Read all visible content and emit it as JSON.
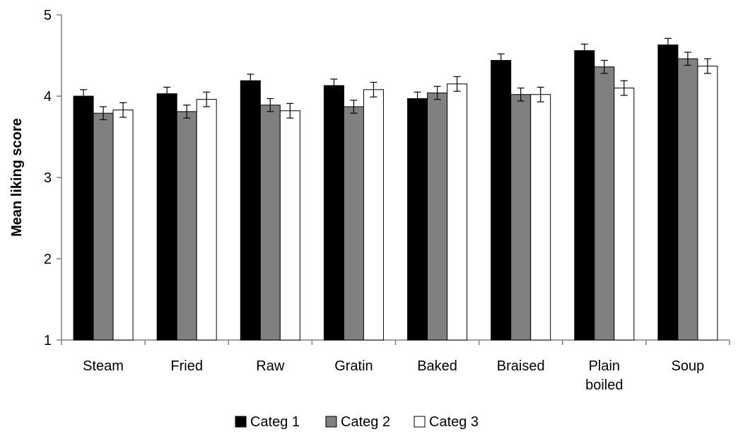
{
  "chart_data": {
    "type": "bar",
    "title": "",
    "xlabel": "",
    "ylabel": "Mean liking score",
    "ylim": [
      1,
      5
    ],
    "yticks": [
      1,
      2,
      3,
      4,
      5
    ],
    "grid": false,
    "legend_position": "bottom",
    "categories": [
      [
        "Steam"
      ],
      [
        "Fried"
      ],
      [
        "Raw"
      ],
      [
        "Gratin"
      ],
      [
        "Baked"
      ],
      [
        "Braised"
      ],
      [
        "Plain",
        "boiled"
      ],
      [
        "Soup"
      ]
    ],
    "series": [
      {
        "name": "Categ 1",
        "color": "#000000",
        "values": [
          4.0,
          4.03,
          4.19,
          4.13,
          3.97,
          4.44,
          4.56,
          4.63
        ],
        "errors": [
          0.08,
          0.08,
          0.08,
          0.08,
          0.08,
          0.08,
          0.08,
          0.08
        ]
      },
      {
        "name": "Categ 2",
        "color": "#808080",
        "values": [
          3.79,
          3.81,
          3.89,
          3.87,
          4.04,
          4.02,
          4.36,
          4.46
        ],
        "errors": [
          0.08,
          0.08,
          0.08,
          0.08,
          0.08,
          0.08,
          0.08,
          0.08
        ]
      },
      {
        "name": "Categ 3",
        "color": "#ffffff",
        "values": [
          3.83,
          3.96,
          3.82,
          4.08,
          4.15,
          4.02,
          4.1,
          4.37
        ],
        "errors": [
          0.09,
          0.09,
          0.09,
          0.09,
          0.09,
          0.09,
          0.09,
          0.09
        ]
      }
    ]
  }
}
